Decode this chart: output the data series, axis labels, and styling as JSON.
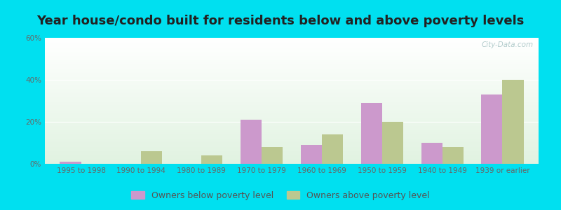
{
  "title": "Year house/condo built for residents below and above poverty levels",
  "categories": [
    "1995 to 1998",
    "1990 to 1994",
    "1980 to 1989",
    "1970 to 1979",
    "1960 to 1969",
    "1950 to 1959",
    "1940 to 1949",
    "1939 or earlier"
  ],
  "below_poverty": [
    1,
    0,
    0,
    21,
    9,
    29,
    10,
    33
  ],
  "above_poverty": [
    0,
    6,
    4,
    8,
    14,
    20,
    8,
    40
  ],
  "below_color": "#cc99cc",
  "above_color": "#bbc890",
  "ylim": [
    0,
    60
  ],
  "yticks": [
    0,
    20,
    40,
    60
  ],
  "ytick_labels": [
    "0%",
    "20%",
    "40%",
    "60%"
  ],
  "background_outer": "#00e0f0",
  "legend_below": "Owners below poverty level",
  "legend_above": "Owners above poverty level",
  "title_fontsize": 13,
  "tick_fontsize": 7.5,
  "legend_fontsize": 9,
  "bar_width": 0.35
}
